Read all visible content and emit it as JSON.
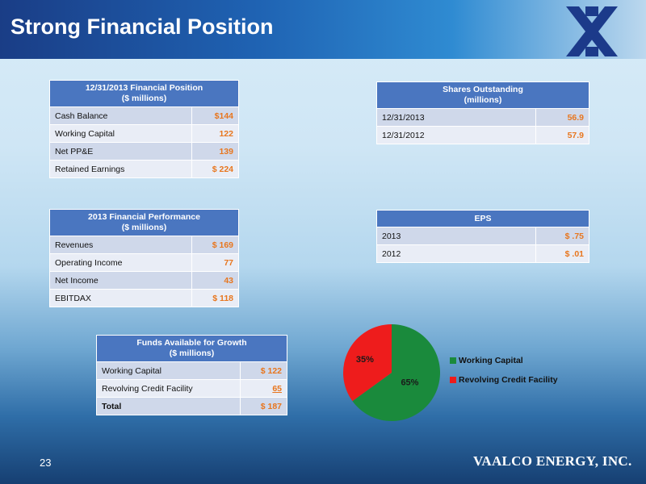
{
  "header": {
    "title": "Strong Financial Position"
  },
  "financial_position": {
    "title_line1": "12/31/2013 Financial Position",
    "title_line2": "($ millions)",
    "rows": [
      {
        "label": "Cash Balance",
        "value": "$144"
      },
      {
        "label": "Working Capital",
        "value": "122"
      },
      {
        "label": "Net PP&E",
        "value": "139"
      },
      {
        "label": "Retained Earnings",
        "value": "$ 224"
      }
    ]
  },
  "shares_outstanding": {
    "title_line1": "Shares Outstanding",
    "title_line2": "(millions)",
    "rows": [
      {
        "label": "12/31/2013",
        "value": "56.9"
      },
      {
        "label": "12/31/2012",
        "value": "57.9"
      }
    ]
  },
  "financial_performance": {
    "title_line1": "2013 Financial Performance",
    "title_line2": "($ millions)",
    "rows": [
      {
        "label": "Revenues",
        "value": "$ 169"
      },
      {
        "label": "Operating Income",
        "value": "77"
      },
      {
        "label": "Net Income",
        "value": "43"
      },
      {
        "label": "EBITDAX",
        "value": "$ 118"
      }
    ]
  },
  "eps": {
    "title": "EPS",
    "rows": [
      {
        "label": "2013",
        "value": "$ .75"
      },
      {
        "label": "2012",
        "value": "$ .01"
      }
    ]
  },
  "funds_available": {
    "title_line1": "Funds  Available for Growth",
    "title_line2": "($ millions)",
    "rows": [
      {
        "label": "Working Capital",
        "value": "$ 122"
      },
      {
        "label": "Revolving Credit Facility",
        "value": "65"
      },
      {
        "label": "Total",
        "value": "$ 187"
      }
    ]
  },
  "chart_data": {
    "type": "pie",
    "title": "",
    "slices": [
      {
        "name": "Working Capital",
        "value": 65,
        "label": "65%",
        "color": "#1a8a3c"
      },
      {
        "name": "Revolving Credit Facility",
        "value": 35,
        "label": "35%",
        "color": "#ee1c1c"
      }
    ],
    "legend_placement": "right"
  },
  "footer": {
    "page_number": "23",
    "brand": "VAALCO ENERGY, INC."
  },
  "colors": {
    "table_header": "#4a76c0",
    "value_orange": "#e8761e"
  }
}
